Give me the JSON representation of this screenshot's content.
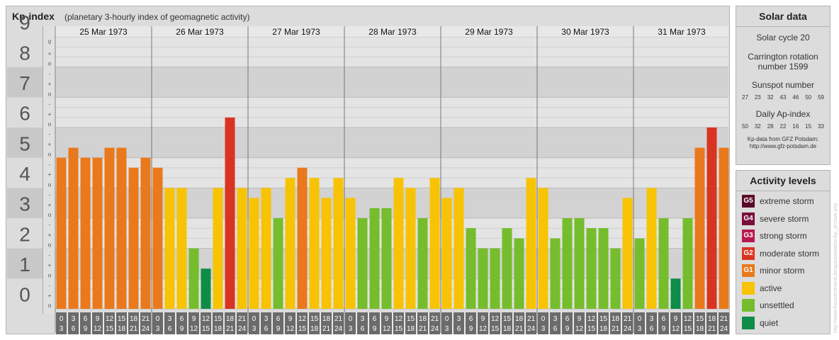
{
  "header": {
    "title": "Kp-index",
    "subtitle": "(planetary 3-hourly index of geomagnetic activity)"
  },
  "chart_data": {
    "type": "bar",
    "ylim": [
      0,
      9
    ],
    "y_ticks": [
      "0",
      "1",
      "2",
      "3",
      "4",
      "5",
      "6",
      "7",
      "8",
      "9"
    ],
    "minor_tick_marks": [
      "o",
      "+",
      "-"
    ],
    "days": [
      "25 Mar 1973",
      "26 Mar 1973",
      "27 Mar 1973",
      "28 Mar 1973",
      "29 Mar 1973",
      "30 Mar 1973",
      "31 Mar 1973"
    ],
    "interval_labels": [
      {
        "top": "0",
        "bottom": "3"
      },
      {
        "top": "3",
        "bottom": "6"
      },
      {
        "top": "6",
        "bottom": "9"
      },
      {
        "top": "9",
        "bottom": "12"
      },
      {
        "top": "12",
        "bottom": "15"
      },
      {
        "top": "15",
        "bottom": "18"
      },
      {
        "top": "18",
        "bottom": "21"
      },
      {
        "top": "21",
        "bottom": "24"
      }
    ],
    "values": [
      [
        5.0,
        5.33,
        5.0,
        5.0,
        5.33,
        5.33,
        4.67,
        5.0
      ],
      [
        4.67,
        4.0,
        4.0,
        2.0,
        1.33,
        4.0,
        6.33,
        4.0
      ],
      [
        3.67,
        4.0,
        3.0,
        4.33,
        4.67,
        4.33,
        3.67,
        4.33
      ],
      [
        3.67,
        3.0,
        3.33,
        3.33,
        4.33,
        4.0,
        3.0,
        4.33
      ],
      [
        3.67,
        4.0,
        2.67,
        2.0,
        2.0,
        2.67,
        2.33,
        4.33
      ],
      [
        4.0,
        2.33,
        3.0,
        3.0,
        2.67,
        2.67,
        2.0,
        3.67
      ],
      [
        2.33,
        4.0,
        3.0,
        1.0,
        3.0,
        5.33,
        6.0,
        5.33
      ]
    ]
  },
  "solar": {
    "header": "Solar data",
    "cycle": "Solar cycle 20",
    "carrington_line1": "Carrington rotation",
    "carrington_line2": "number 1599",
    "sunspot_label": "Sunspot number",
    "sunspot_values": [
      "27",
      "23",
      "32",
      "43",
      "46",
      "50",
      "59"
    ],
    "ap_label": "Daily Ap-index",
    "ap_values": [
      "50",
      "32",
      "28",
      "22",
      "16",
      "15",
      "33"
    ],
    "source_line1": "Kp-data from GFZ Potsdam:",
    "source_line2": "http://www.gfz-potsdam.de"
  },
  "activity": {
    "header": "Activity levels",
    "levels": [
      {
        "code": "G5",
        "label": "extreme storm",
        "color": "#5a0a28"
      },
      {
        "code": "G4",
        "label": "severe storm",
        "color": "#7a0e3c"
      },
      {
        "code": "G3",
        "label": "strong storm",
        "color": "#b8174e"
      },
      {
        "code": "G2",
        "label": "moderate storm",
        "color": "#d93422"
      },
      {
        "code": "G1",
        "label": "minor storm",
        "color": "#e9791c"
      },
      {
        "code": "",
        "label": "active",
        "color": "#f7c304"
      },
      {
        "code": "",
        "label": "unsettled",
        "color": "#75bd2c"
      },
      {
        "code": "",
        "label": "quiet",
        "color": "#0e8c48"
      }
    ]
  },
  "watermark": "http://www.theusersfriend.de/spaceweather/kp_archive.php"
}
